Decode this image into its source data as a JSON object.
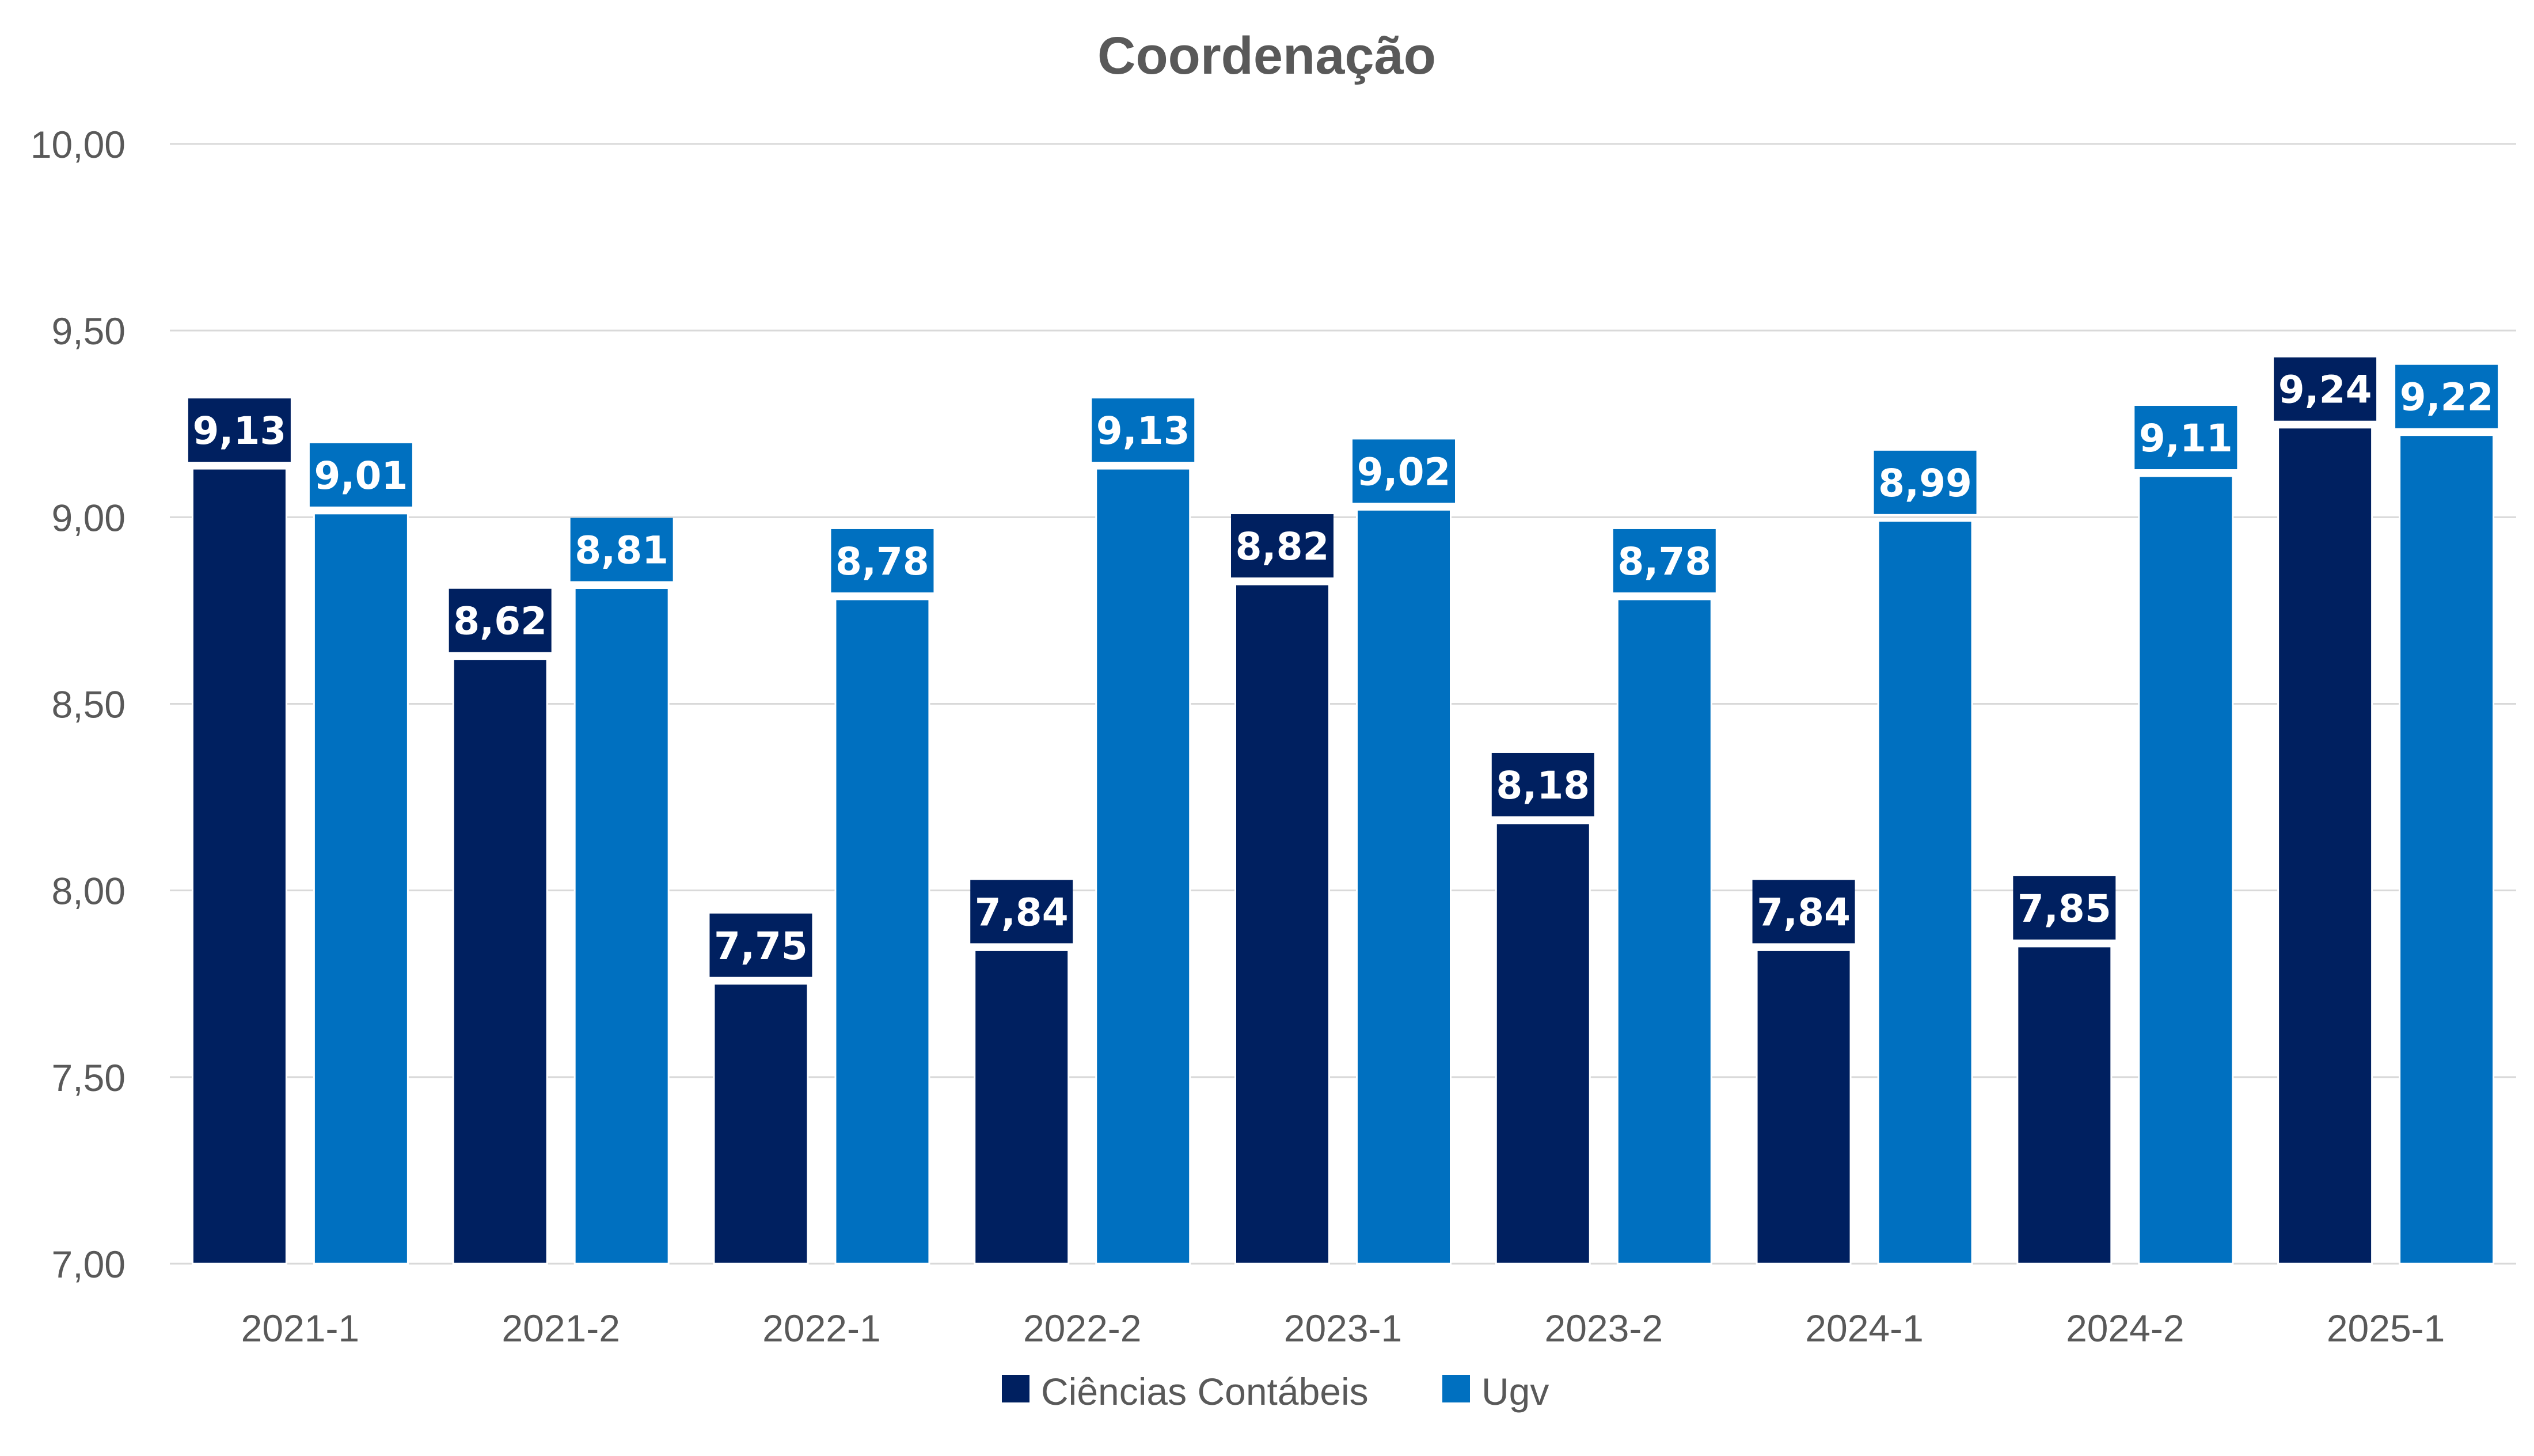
{
  "chart_data": {
    "type": "bar",
    "title": "Coordenação",
    "categories": [
      "2021-1",
      "2021-2",
      "2022-1",
      "2022-2",
      "2023-1",
      "2023-2",
      "2024-1",
      "2024-2",
      "2025-1"
    ],
    "series": [
      {
        "name": "Ciências Contábeis",
        "color": "#002060",
        "values": [
          9.13,
          8.62,
          7.75,
          7.84,
          8.82,
          8.18,
          7.84,
          7.85,
          9.24
        ],
        "labels": [
          "9,13",
          "8,62",
          "7,75",
          "7,84",
          "8,82",
          "8,18",
          "7,84",
          "7,85",
          "9,24"
        ]
      },
      {
        "name": "Ugv",
        "color": "#0070C0",
        "values": [
          9.01,
          8.81,
          8.78,
          9.13,
          9.02,
          8.78,
          8.99,
          9.11,
          9.22
        ],
        "labels": [
          "9,01",
          "8,81",
          "8,78",
          "9,13",
          "9,02",
          "8,78",
          "8,99",
          "9,11",
          "9,22"
        ]
      }
    ],
    "ylim": [
      7.0,
      10.0
    ],
    "yticks": [
      7.0,
      7.5,
      8.0,
      8.5,
      9.0,
      9.5,
      10.0
    ],
    "ytick_labels": [
      "7,00",
      "7,50",
      "8,00",
      "8,50",
      "9,00",
      "9,50",
      "10,00"
    ],
    "xlabel": "",
    "ylabel": "",
    "grid": true,
    "legend_position": "bottom",
    "colors": {
      "gridline": "#D9D9D9",
      "axis_text": "#595959",
      "title": "#595959",
      "label_text": "#FFFFFF"
    }
  }
}
